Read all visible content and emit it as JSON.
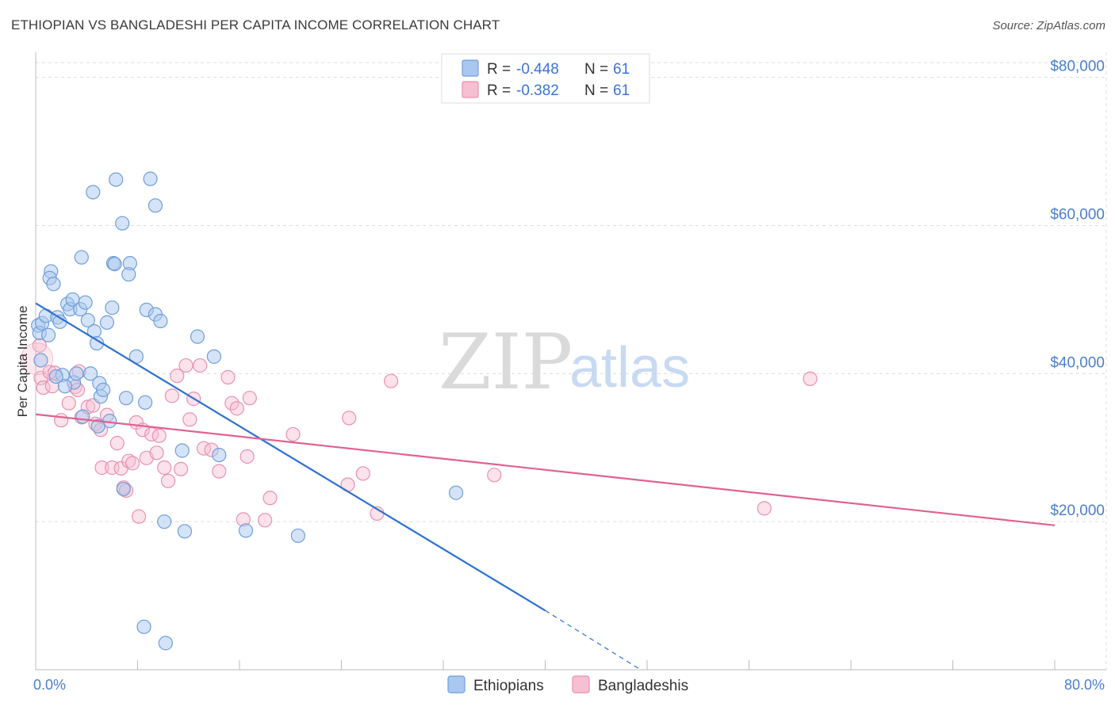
{
  "title": "ETHIOPIAN VS BANGLADESHI PER CAPITA INCOME CORRELATION CHART",
  "source": "Source: ZipAtlas.com",
  "watermark": {
    "zip": "ZIP",
    "atlas": "atlas"
  },
  "colors": {
    "ethiopians_fill": "#a9c8ef",
    "ethiopians_stroke": "#6f9fd8",
    "ethiopians_line": "#2f72d0",
    "bangladeshis_fill": "#f7bfd2",
    "bangladeshis_stroke": "#e891b0",
    "bangladeshis_line": "#e0628f",
    "tick_text": "#4a7fcb",
    "grid": "#dddddd"
  },
  "legend": {
    "rows": [
      {
        "r_label": "R =",
        "r_value": "-0.448",
        "n_label": "N =",
        "n_value": "61"
      },
      {
        "r_label": "R =",
        "r_value": "-0.382",
        "n_label": "N =",
        "n_value": "61"
      }
    ]
  },
  "bottom_legend": [
    "Ethiopians",
    "Bangladeshis"
  ],
  "chart_data": {
    "type": "scatter",
    "title": "ETHIOPIAN VS BANGLADESHI PER CAPITA INCOME CORRELATION CHART",
    "xlabel": "",
    "ylabel": "Per Capita Income",
    "xlim": [
      0,
      80
    ],
    "ylim": [
      0,
      82000
    ],
    "x_tick_labels": [
      "0.0%",
      "80.0%"
    ],
    "y_ticks": [
      20000,
      40000,
      60000,
      80000
    ],
    "y_tick_labels": [
      "$20,000",
      "$40,000",
      "$60,000",
      "$80,000"
    ],
    "grid": true,
    "legend_position": "top-center",
    "series": [
      {
        "name": "Ethiopians",
        "r": -0.448,
        "n": 61,
        "trend": {
          "x0": 0,
          "y0": 49500,
          "x1": 40,
          "y1": 8000,
          "dashed_to_x": 47.5,
          "dashed_to_y": 0
        },
        "points": [
          [
            0.2,
            46500
          ],
          [
            0.3,
            45500
          ],
          [
            0.5,
            46800
          ],
          [
            0.8,
            47800
          ],
          [
            1.0,
            45200
          ],
          [
            1.2,
            53800
          ],
          [
            1.1,
            52900
          ],
          [
            1.4,
            52100
          ],
          [
            1.7,
            47600
          ],
          [
            1.9,
            47000
          ],
          [
            2.1,
            39800
          ],
          [
            2.5,
            49400
          ],
          [
            2.7,
            48700
          ],
          [
            2.9,
            50000
          ],
          [
            3.0,
            38800
          ],
          [
            3.2,
            40000
          ],
          [
            3.5,
            48700
          ],
          [
            3.9,
            49600
          ],
          [
            4.1,
            47200
          ],
          [
            4.3,
            40000
          ],
          [
            3.6,
            55700
          ],
          [
            4.6,
            45700
          ],
          [
            4.8,
            44100
          ],
          [
            5.0,
            38700
          ],
          [
            5.1,
            36900
          ],
          [
            5.3,
            37800
          ],
          [
            5.6,
            46900
          ],
          [
            5.8,
            33600
          ],
          [
            6.3,
            66200
          ],
          [
            4.5,
            64500
          ],
          [
            6.8,
            60300
          ],
          [
            6.1,
            54900
          ],
          [
            6.2,
            54800
          ],
          [
            7.4,
            54900
          ],
          [
            7.3,
            53400
          ],
          [
            7.1,
            36700
          ],
          [
            7.9,
            42300
          ],
          [
            8.6,
            36100
          ],
          [
            8.7,
            48600
          ],
          [
            9.0,
            66300
          ],
          [
            9.4,
            62700
          ],
          [
            9.4,
            48000
          ],
          [
            9.8,
            47100
          ],
          [
            10.1,
            20000
          ],
          [
            11.5,
            29600
          ],
          [
            11.7,
            18700
          ],
          [
            12.7,
            45000
          ],
          [
            14.0,
            42300
          ],
          [
            14.4,
            29000
          ],
          [
            16.5,
            18800
          ],
          [
            20.6,
            18100
          ],
          [
            33.0,
            23900
          ],
          [
            6.9,
            24400
          ],
          [
            8.5,
            5800
          ],
          [
            10.2,
            3600
          ],
          [
            4.9,
            32900
          ],
          [
            3.7,
            34200
          ],
          [
            2.3,
            38300
          ],
          [
            1.6,
            39600
          ],
          [
            0.4,
            41800
          ],
          [
            6.0,
            48900
          ]
        ]
      },
      {
        "name": "Bangladeshis",
        "r": -0.382,
        "n": 61,
        "trend": {
          "x0": 0,
          "y0": 34500,
          "x1": 80,
          "y1": 19500
        },
        "points": [
          [
            0.3,
            43800
          ],
          [
            0.4,
            39400
          ],
          [
            0.6,
            38100
          ],
          [
            1.1,
            40200
          ],
          [
            1.3,
            38300
          ],
          [
            1.5,
            40100
          ],
          [
            2.0,
            33700
          ],
          [
            2.6,
            36000
          ],
          [
            3.1,
            38200
          ],
          [
            3.3,
            37800
          ],
          [
            3.4,
            40300
          ],
          [
            3.6,
            34100
          ],
          [
            4.1,
            35500
          ],
          [
            4.5,
            35700
          ],
          [
            4.7,
            33200
          ],
          [
            5.1,
            32400
          ],
          [
            5.2,
            27300
          ],
          [
            5.6,
            34400
          ],
          [
            6.0,
            27300
          ],
          [
            6.4,
            30600
          ],
          [
            6.7,
            27200
          ],
          [
            6.9,
            24600
          ],
          [
            7.1,
            24200
          ],
          [
            7.3,
            28200
          ],
          [
            7.6,
            27900
          ],
          [
            7.9,
            33400
          ],
          [
            8.1,
            20700
          ],
          [
            8.4,
            32400
          ],
          [
            8.7,
            28600
          ],
          [
            9.1,
            31800
          ],
          [
            9.5,
            29300
          ],
          [
            9.7,
            31600
          ],
          [
            10.1,
            27300
          ],
          [
            10.4,
            25500
          ],
          [
            10.7,
            37000
          ],
          [
            11.1,
            39700
          ],
          [
            11.4,
            27100
          ],
          [
            11.8,
            41100
          ],
          [
            12.1,
            33800
          ],
          [
            12.4,
            36600
          ],
          [
            12.9,
            41100
          ],
          [
            13.2,
            29900
          ],
          [
            13.8,
            29700
          ],
          [
            14.4,
            26800
          ],
          [
            15.1,
            39500
          ],
          [
            15.4,
            36000
          ],
          [
            15.8,
            35300
          ],
          [
            16.3,
            20300
          ],
          [
            16.6,
            28800
          ],
          [
            16.8,
            36700
          ],
          [
            18.0,
            20200
          ],
          [
            18.4,
            23200
          ],
          [
            20.2,
            31800
          ],
          [
            24.6,
            34000
          ],
          [
            24.5,
            25000
          ],
          [
            25.7,
            26500
          ],
          [
            26.8,
            21100
          ],
          [
            27.9,
            39000
          ],
          [
            36.0,
            26300
          ],
          [
            57.2,
            21800
          ],
          [
            60.8,
            39300
          ]
        ]
      }
    ],
    "extra_points_note": ""
  }
}
